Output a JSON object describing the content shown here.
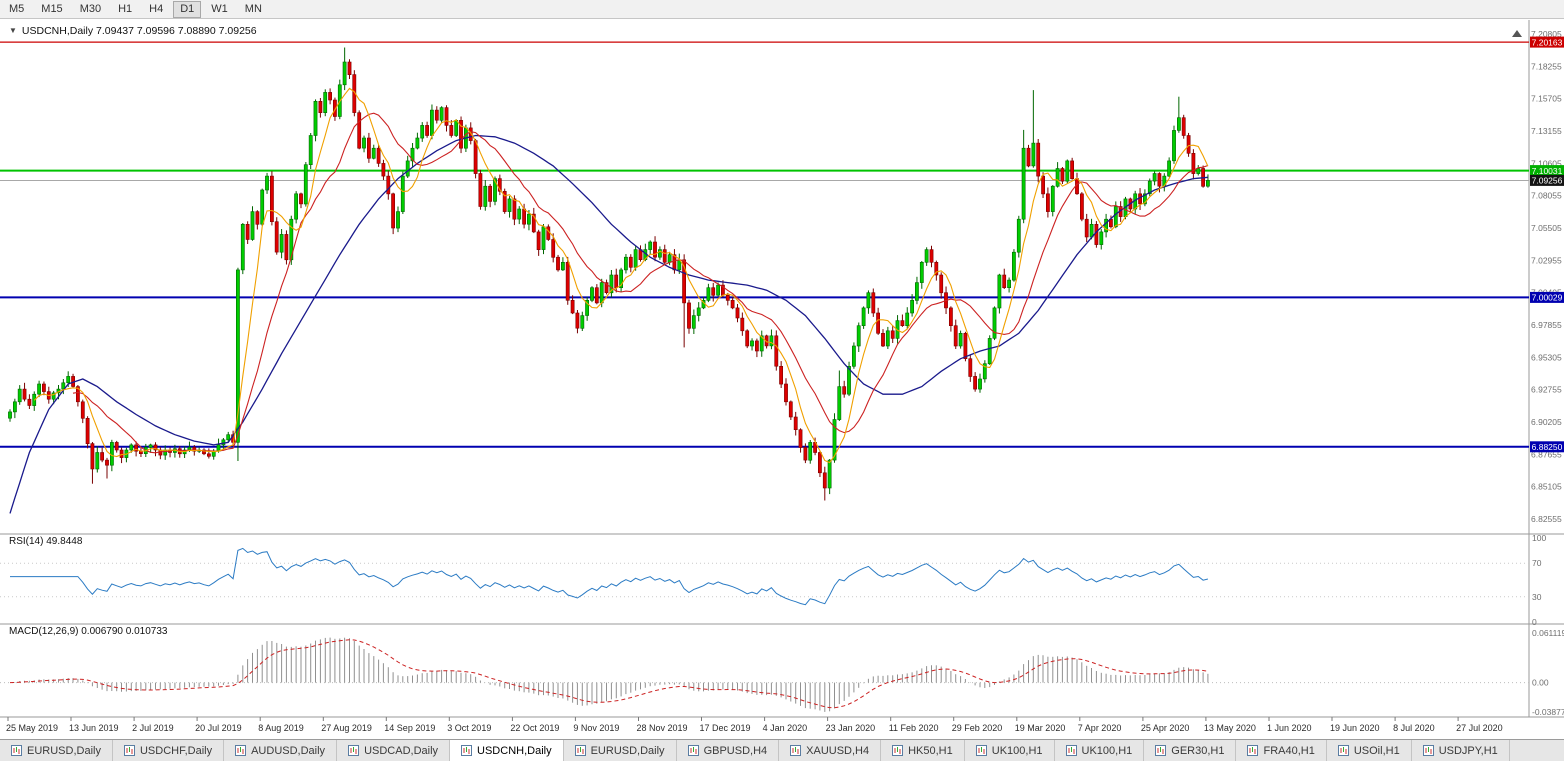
{
  "toolbar": {
    "timeframes": [
      {
        "label": "M5"
      },
      {
        "label": "M15"
      },
      {
        "label": "M30"
      },
      {
        "label": "H1"
      },
      {
        "label": "H4"
      },
      {
        "label": "D1",
        "active": true
      },
      {
        "label": "W1"
      },
      {
        "label": "MN"
      }
    ]
  },
  "chart": {
    "title": "USDCNH,Daily 7.09437 7.09596 7.08890 7.09256",
    "collapse_icon": "▼",
    "price_axis_labels": [
      "7.20805",
      "7.18255",
      "7.15705",
      "7.13155",
      "7.10605",
      "7.08055",
      "7.05505",
      "7.02955",
      "7.00405",
      "6.97855",
      "6.95305",
      "6.92755",
      "6.90205",
      "6.87655",
      "6.85105",
      "6.82555"
    ],
    "hlines": [
      {
        "price": 7.20163,
        "label": "7.20163",
        "color_key": "red",
        "width": 1.3
      },
      {
        "price": 7.10031,
        "label": "7.10031",
        "color_key": "green",
        "width": 2
      },
      {
        "price": 7.09256,
        "label": "7.09256",
        "color_key": "current",
        "width": 1
      },
      {
        "price": 7.00029,
        "label": "7.00029",
        "color_key": "blue",
        "width": 2
      },
      {
        "price": 6.8825,
        "label": "6.88250",
        "color_key": "blue",
        "width": 2
      }
    ]
  },
  "rsi": {
    "label": "RSI(14) 49.8448",
    "period": 14,
    "value": 49.8448,
    "axis_labels": [
      "100",
      "70",
      "30",
      "0"
    ],
    "level_lines": [
      70,
      30
    ]
  },
  "macd": {
    "label": "MACD(12,26,9) 0.006790 0.010733",
    "params": [
      12,
      26,
      9
    ],
    "values": [
      0.00679,
      0.010733
    ],
    "axis_labels": [
      "0.061119",
      "0.00",
      "-0.038777"
    ],
    "scale_max": 0.061119,
    "scale_min": -0.038777
  },
  "time_axis": {
    "labels": [
      "25 May 2019",
      "13 Jun 2019",
      "2 Jul 2019",
      "20 Jul 2019",
      "8 Aug 2019",
      "27 Aug 2019",
      "14 Sep 2019",
      "3 Oct 2019",
      "22 Oct 2019",
      "9 Nov 2019",
      "28 Nov 2019",
      "17 Dec 2019",
      "4 Jan 2020",
      "23 Jan 2020",
      "11 Feb 2020",
      "29 Feb 2020",
      "19 Mar 2020",
      "7 Apr 2020",
      "25 Apr 2020",
      "13 May 2020",
      "1 Jun 2020",
      "19 Jun 2020",
      "8 Jul 2020",
      "27 Jul 2020"
    ]
  },
  "tabs": [
    {
      "label": "EURUSD,Daily"
    },
    {
      "label": "USDCHF,Daily"
    },
    {
      "label": "AUDUSD,Daily"
    },
    {
      "label": "USDCAD,Daily"
    },
    {
      "label": "USDCNH,Daily",
      "active": true
    },
    {
      "label": "EURUSD,Daily"
    },
    {
      "label": "GBPUSD,H4"
    },
    {
      "label": "XAUUSD,H4"
    },
    {
      "label": "HK50,H1"
    },
    {
      "label": "UK100,H1"
    },
    {
      "label": "UK100,H1"
    },
    {
      "label": "GER30,H1"
    },
    {
      "label": "FRA40,H1"
    },
    {
      "label": "USOil,H1"
    },
    {
      "label": "USDJPY,H1"
    }
  ],
  "colors": {
    "up": "#00cc00",
    "up_stroke": "#006600",
    "down": "#dd0000",
    "down_stroke": "#7a0000",
    "ma_fast": "#f0a000",
    "ma_mid": "#cc2222",
    "ma_slow": "#1a1a8c",
    "rsi_line": "#2b7bc4",
    "macd_hist": "#909090",
    "macd_signal": "#cc2222",
    "hline_red": "#cc0000",
    "hline_green": "#00c300",
    "hline_blue": "#0000b0",
    "current_price_line": "#a8a8a8",
    "badge_current_bg": "#141414"
  },
  "chart_data": {
    "type": "candlestick",
    "symbol": "USDCNH",
    "timeframe": "Daily",
    "current_ohlc": {
      "open": 7.09437,
      "high": 7.09596,
      "low": 7.0889,
      "close": 7.09256
    },
    "price_range": {
      "top": 7.20805,
      "bottom": 6.82555
    },
    "bars": 248,
    "right_shift_bars": 66,
    "ma_periods": {
      "fast": 6,
      "mid": 14,
      "slow": "waypoints"
    },
    "closes": [
      6.91,
      6.918,
      6.928,
      6.92,
      6.915,
      6.924,
      6.932,
      6.926,
      6.92,
      6.925,
      6.928,
      6.933,
      6.938,
      6.93,
      6.918,
      6.905,
      6.885,
      6.865,
      6.878,
      6.872,
      6.868,
      6.886,
      6.88,
      6.874,
      6.88,
      6.884,
      6.879,
      6.877,
      6.882,
      6.884,
      6.88,
      6.876,
      6.88,
      6.878,
      6.881,
      6.877,
      6.88,
      6.882,
      6.879,
      6.88,
      6.877,
      6.875,
      6.879,
      6.884,
      6.888,
      6.892,
      6.886,
      7.022,
      7.058,
      7.046,
      7.068,
      7.058,
      7.085,
      7.096,
      7.06,
      7.036,
      7.05,
      7.03,
      7.062,
      7.082,
      7.074,
      7.105,
      7.128,
      7.155,
      7.146,
      7.162,
      7.156,
      7.143,
      7.168,
      7.186,
      7.176,
      7.146,
      7.118,
      7.126,
      7.11,
      7.118,
      7.106,
      7.096,
      7.082,
      7.055,
      7.068,
      7.096,
      7.108,
      7.118,
      7.126,
      7.136,
      7.128,
      7.148,
      7.14,
      7.15,
      7.136,
      7.128,
      7.14,
      7.118,
      7.134,
      7.124,
      7.098,
      7.072,
      7.088,
      7.076,
      7.094,
      7.084,
      7.068,
      7.078,
      7.062,
      7.07,
      7.058,
      7.066,
      7.052,
      7.038,
      7.056,
      7.046,
      7.032,
      7.022,
      7.028,
      6.998,
      6.988,
      6.976,
      6.986,
      6.998,
      7.008,
      6.996,
      7.012,
      7.004,
      7.018,
      7.008,
      7.022,
      7.032,
      7.024,
      7.038,
      7.03,
      7.038,
      7.044,
      7.032,
      7.038,
      7.028,
      7.034,
      7.022,
      7.03,
      6.996,
      6.976,
      6.986,
      6.992,
      6.998,
      7.008,
      7.002,
      7.01,
      7.002,
      6.998,
      6.992,
      6.984,
      6.974,
      6.962,
      6.966,
      6.958,
      6.97,
      6.962,
      6.97,
      6.946,
      6.932,
      6.918,
      6.906,
      6.896,
      6.882,
      6.872,
      6.886,
      6.878,
      6.862,
      6.85,
      6.872,
      6.904,
      6.93,
      6.924,
      6.946,
      6.962,
      6.978,
      6.992,
      7.004,
      6.988,
      6.972,
      6.962,
      6.974,
      6.968,
      6.982,
      6.978,
      6.988,
      6.998,
      7.012,
      7.028,
      7.038,
      7.028,
      7.018,
      7.004,
      6.992,
      6.978,
      6.962,
      6.972,
      6.952,
      6.938,
      6.928,
      6.936,
      6.948,
      6.968,
      6.992,
      7.018,
      7.008,
      7.014,
      7.036,
      7.062,
      7.118,
      7.104,
      7.122,
      7.096,
      7.082,
      7.068,
      7.088,
      7.102,
      7.092,
      7.108,
      7.094,
      7.082,
      7.062,
      7.048,
      7.058,
      7.042,
      7.052,
      7.062,
      7.056,
      7.072,
      7.064,
      7.078,
      7.07,
      7.082,
      7.074,
      7.082,
      7.092,
      7.098,
      7.088,
      7.096,
      7.108,
      7.132,
      7.142,
      7.128,
      7.114,
      7.098,
      7.102,
      7.088,
      7.0926
    ],
    "wicks": {
      "17": [
        0,
        0.009
      ],
      "20": [
        0,
        0.007
      ],
      "47": [
        0,
        0.012
      ],
      "69": [
        0.009,
        0
      ],
      "139": [
        0,
        0.034
      ],
      "168": [
        0,
        0.006
      ],
      "171": [
        0.008,
        0
      ],
      "209": [
        0.012,
        0
      ],
      "211": [
        0.04,
        0
      ],
      "241": [
        0.014,
        0
      ]
    },
    "slow_ma_waypoints": [
      [
        0,
        6.83
      ],
      [
        4,
        6.878
      ],
      [
        8,
        6.912
      ],
      [
        12,
        6.932
      ],
      [
        15,
        6.936
      ],
      [
        18,
        6.93
      ],
      [
        22,
        6.918
      ],
      [
        26,
        6.908
      ],
      [
        30,
        6.899
      ],
      [
        34,
        6.892
      ],
      [
        38,
        6.887
      ],
      [
        42,
        6.884
      ],
      [
        45,
        6.886
      ],
      [
        48,
        6.902
      ],
      [
        52,
        6.928
      ],
      [
        56,
        6.956
      ],
      [
        60,
        6.982
      ],
      [
        64,
        7.008
      ],
      [
        68,
        7.034
      ],
      [
        72,
        7.058
      ],
      [
        76,
        7.078
      ],
      [
        80,
        7.094
      ],
      [
        84,
        7.106
      ],
      [
        88,
        7.116
      ],
      [
        92,
        7.124
      ],
      [
        96,
        7.128
      ],
      [
        100,
        7.127
      ],
      [
        104,
        7.122
      ],
      [
        108,
        7.114
      ],
      [
        112,
        7.104
      ],
      [
        116,
        7.09
      ],
      [
        120,
        7.075
      ],
      [
        124,
        7.058
      ],
      [
        128,
        7.044
      ],
      [
        132,
        7.032
      ],
      [
        136,
        7.024
      ],
      [
        140,
        7.018
      ],
      [
        144,
        7.014
      ],
      [
        148,
        7.012
      ],
      [
        152,
        7.01
      ],
      [
        156,
        7.006
      ],
      [
        160,
        6.998
      ],
      [
        164,
        6.986
      ],
      [
        168,
        6.968
      ],
      [
        172,
        6.948
      ],
      [
        176,
        6.932
      ],
      [
        180,
        6.924
      ],
      [
        184,
        6.924
      ],
      [
        188,
        6.93
      ],
      [
        192,
        6.942
      ],
      [
        196,
        6.952
      ],
      [
        200,
        6.958
      ],
      [
        204,
        6.962
      ],
      [
        208,
        6.972
      ],
      [
        212,
        6.99
      ],
      [
        216,
        7.012
      ],
      [
        220,
        7.034
      ],
      [
        224,
        7.052
      ],
      [
        228,
        7.066
      ],
      [
        232,
        7.077
      ],
      [
        236,
        7.085
      ],
      [
        240,
        7.09
      ],
      [
        244,
        7.094
      ],
      [
        247,
        7.095
      ]
    ]
  }
}
